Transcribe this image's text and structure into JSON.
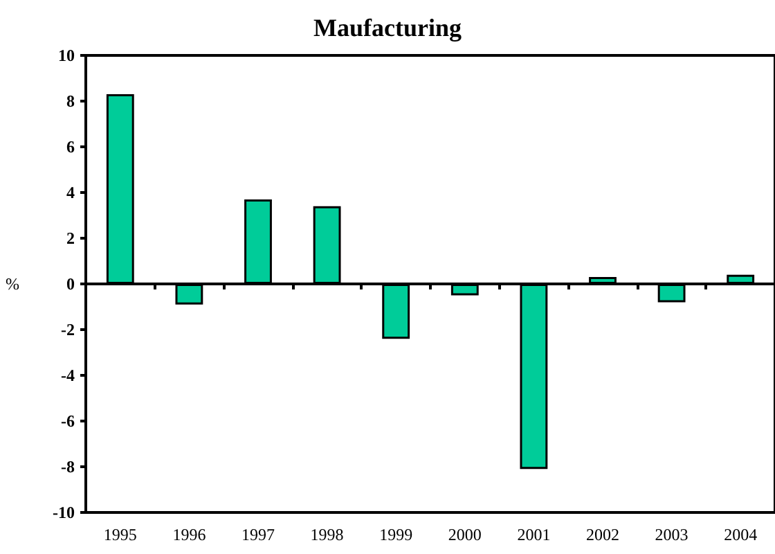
{
  "chart_data": {
    "type": "bar",
    "title": "Maufacturing",
    "ylabel": "%",
    "categories": [
      "1995",
      "1996",
      "1997",
      "1998",
      "1999",
      "2000",
      "2001",
      "2002",
      "2003",
      "2004"
    ],
    "values": [
      8.3,
      -0.9,
      3.7,
      3.4,
      -2.4,
      -0.5,
      -8.1,
      0.3,
      -0.8,
      0.4
    ],
    "color": "#00cc99",
    "ylim": [
      -10,
      10
    ],
    "yticks": [
      -10,
      -8,
      -6,
      -4,
      -2,
      0,
      2,
      4,
      6,
      8,
      10
    ]
  }
}
